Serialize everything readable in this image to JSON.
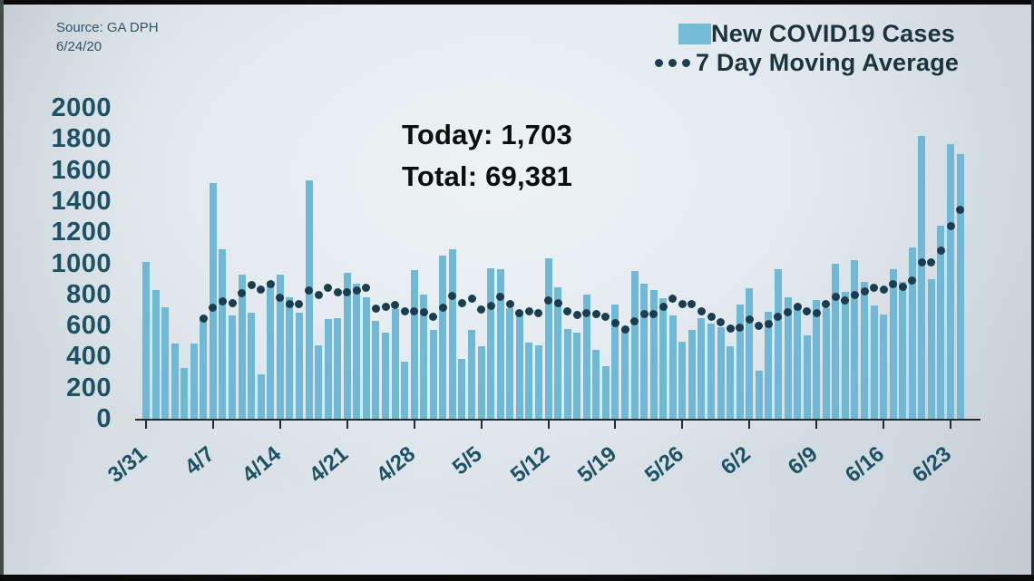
{
  "source": {
    "line1": "Source: GA DPH",
    "line2": "6/24/20"
  },
  "legend": {
    "bars_label": "New COVID19 Cases",
    "ma_label": "7 Day Moving Average"
  },
  "annotation": {
    "today_label": "Today: 1,703",
    "total_label": "Total: 69,381"
  },
  "colors": {
    "bar": "#6fb8d6",
    "legend_swatch": "#74bcd9",
    "ma_dot": "#1b3d50",
    "axis_text": "#1d5265",
    "annotation_text": "#0d0d0d",
    "source_text": "#33556a",
    "axis_line": "#2a2a2a"
  },
  "chart_data": {
    "type": "bar",
    "title": "",
    "xlabel": "",
    "ylabel": "",
    "ylim": [
      0,
      2000
    ],
    "y_ticks": [
      0,
      200,
      400,
      600,
      800,
      1000,
      1200,
      1400,
      1600,
      1800,
      2000
    ],
    "grid": false,
    "legend_position": "top-right",
    "x_tick_labels": [
      "3/31",
      "4/7",
      "4/14",
      "4/21",
      "4/28",
      "5/5",
      "5/12",
      "5/19",
      "5/26",
      "6/2",
      "6/9",
      "6/16",
      "6/23"
    ],
    "x_tick_indices": [
      0,
      7,
      14,
      21,
      28,
      35,
      42,
      49,
      56,
      63,
      70,
      77,
      84
    ],
    "x": [
      "3/31",
      "4/1",
      "4/2",
      "4/3",
      "4/4",
      "4/5",
      "4/6",
      "4/7",
      "4/8",
      "4/9",
      "4/10",
      "4/11",
      "4/12",
      "4/13",
      "4/14",
      "4/15",
      "4/16",
      "4/17",
      "4/18",
      "4/19",
      "4/20",
      "4/21",
      "4/22",
      "4/23",
      "4/24",
      "4/25",
      "4/26",
      "4/27",
      "4/28",
      "4/29",
      "4/30",
      "5/1",
      "5/2",
      "5/3",
      "5/4",
      "5/5",
      "5/6",
      "5/7",
      "5/8",
      "5/9",
      "5/10",
      "5/11",
      "5/12",
      "5/13",
      "5/14",
      "5/15",
      "5/16",
      "5/17",
      "5/18",
      "5/19",
      "5/20",
      "5/21",
      "5/22",
      "5/23",
      "5/24",
      "5/25",
      "5/26",
      "5/27",
      "5/28",
      "5/29",
      "5/30",
      "5/31",
      "6/1",
      "6/2",
      "6/3",
      "6/4",
      "6/5",
      "6/6",
      "6/7",
      "6/8",
      "6/9",
      "6/10",
      "6/11",
      "6/12",
      "6/13",
      "6/14",
      "6/15",
      "6/16",
      "6/17",
      "6/18",
      "6/19",
      "6/20",
      "6/21",
      "6/22",
      "6/23",
      "6/24"
    ],
    "series": [
      {
        "name": "New COVID19 Cases",
        "type": "bar",
        "values": [
          1010,
          828,
          720,
          483,
          326,
          483,
          660,
          1516,
          1093,
          664,
          928,
          682,
          285,
          880,
          926,
          780,
          680,
          1536,
          470,
          640,
          650,
          940,
          870,
          780,
          630,
          553,
          704,
          366,
          956,
          800,
          572,
          1048,
          1088,
          385,
          572,
          464,
          969,
          960,
          710,
          694,
          488,
          470,
          1034,
          848,
          578,
          553,
          798,
          441,
          336,
          736,
          572,
          952,
          867,
          828,
          773,
          665,
          497,
          572,
          645,
          615,
          588,
          468,
          736,
          842,
          307,
          690,
          960,
          779,
          724,
          538,
          763,
          710,
          999,
          814,
          1020,
          880,
          730,
          670,
          960,
          880,
          1100,
          1820,
          900,
          1240,
          1768,
          1703
        ]
      },
      {
        "name": "7 Day Moving Average",
        "type": "dotted-line",
        "start_index": 6,
        "values": [
          644,
          717,
          754,
          746,
          810,
          861,
          833,
          864,
          780,
          735,
          737,
          824,
          794,
          845,
          812,
          814,
          827,
          841,
          711,
          723,
          732,
          692,
          694,
          684,
          654,
          714,
          791,
          745,
          774,
          704,
          728,
          784,
          735,
          679,
          694,
          679,
          761,
          743,
          689,
          666,
          681,
          675,
          655,
          613,
          573,
          627,
          672,
          676,
          723,
          770,
          736,
          736,
          692,
          656,
          622,
          579,
          589,
          638,
          600,
          607,
          656,
          683,
          720,
          691,
          680,
          738,
          782,
          761,
          795,
          818,
          845,
          832,
          868,
          851,
          891,
          1006,
          1009,
          1081,
          1238,
          1344
        ]
      }
    ]
  }
}
